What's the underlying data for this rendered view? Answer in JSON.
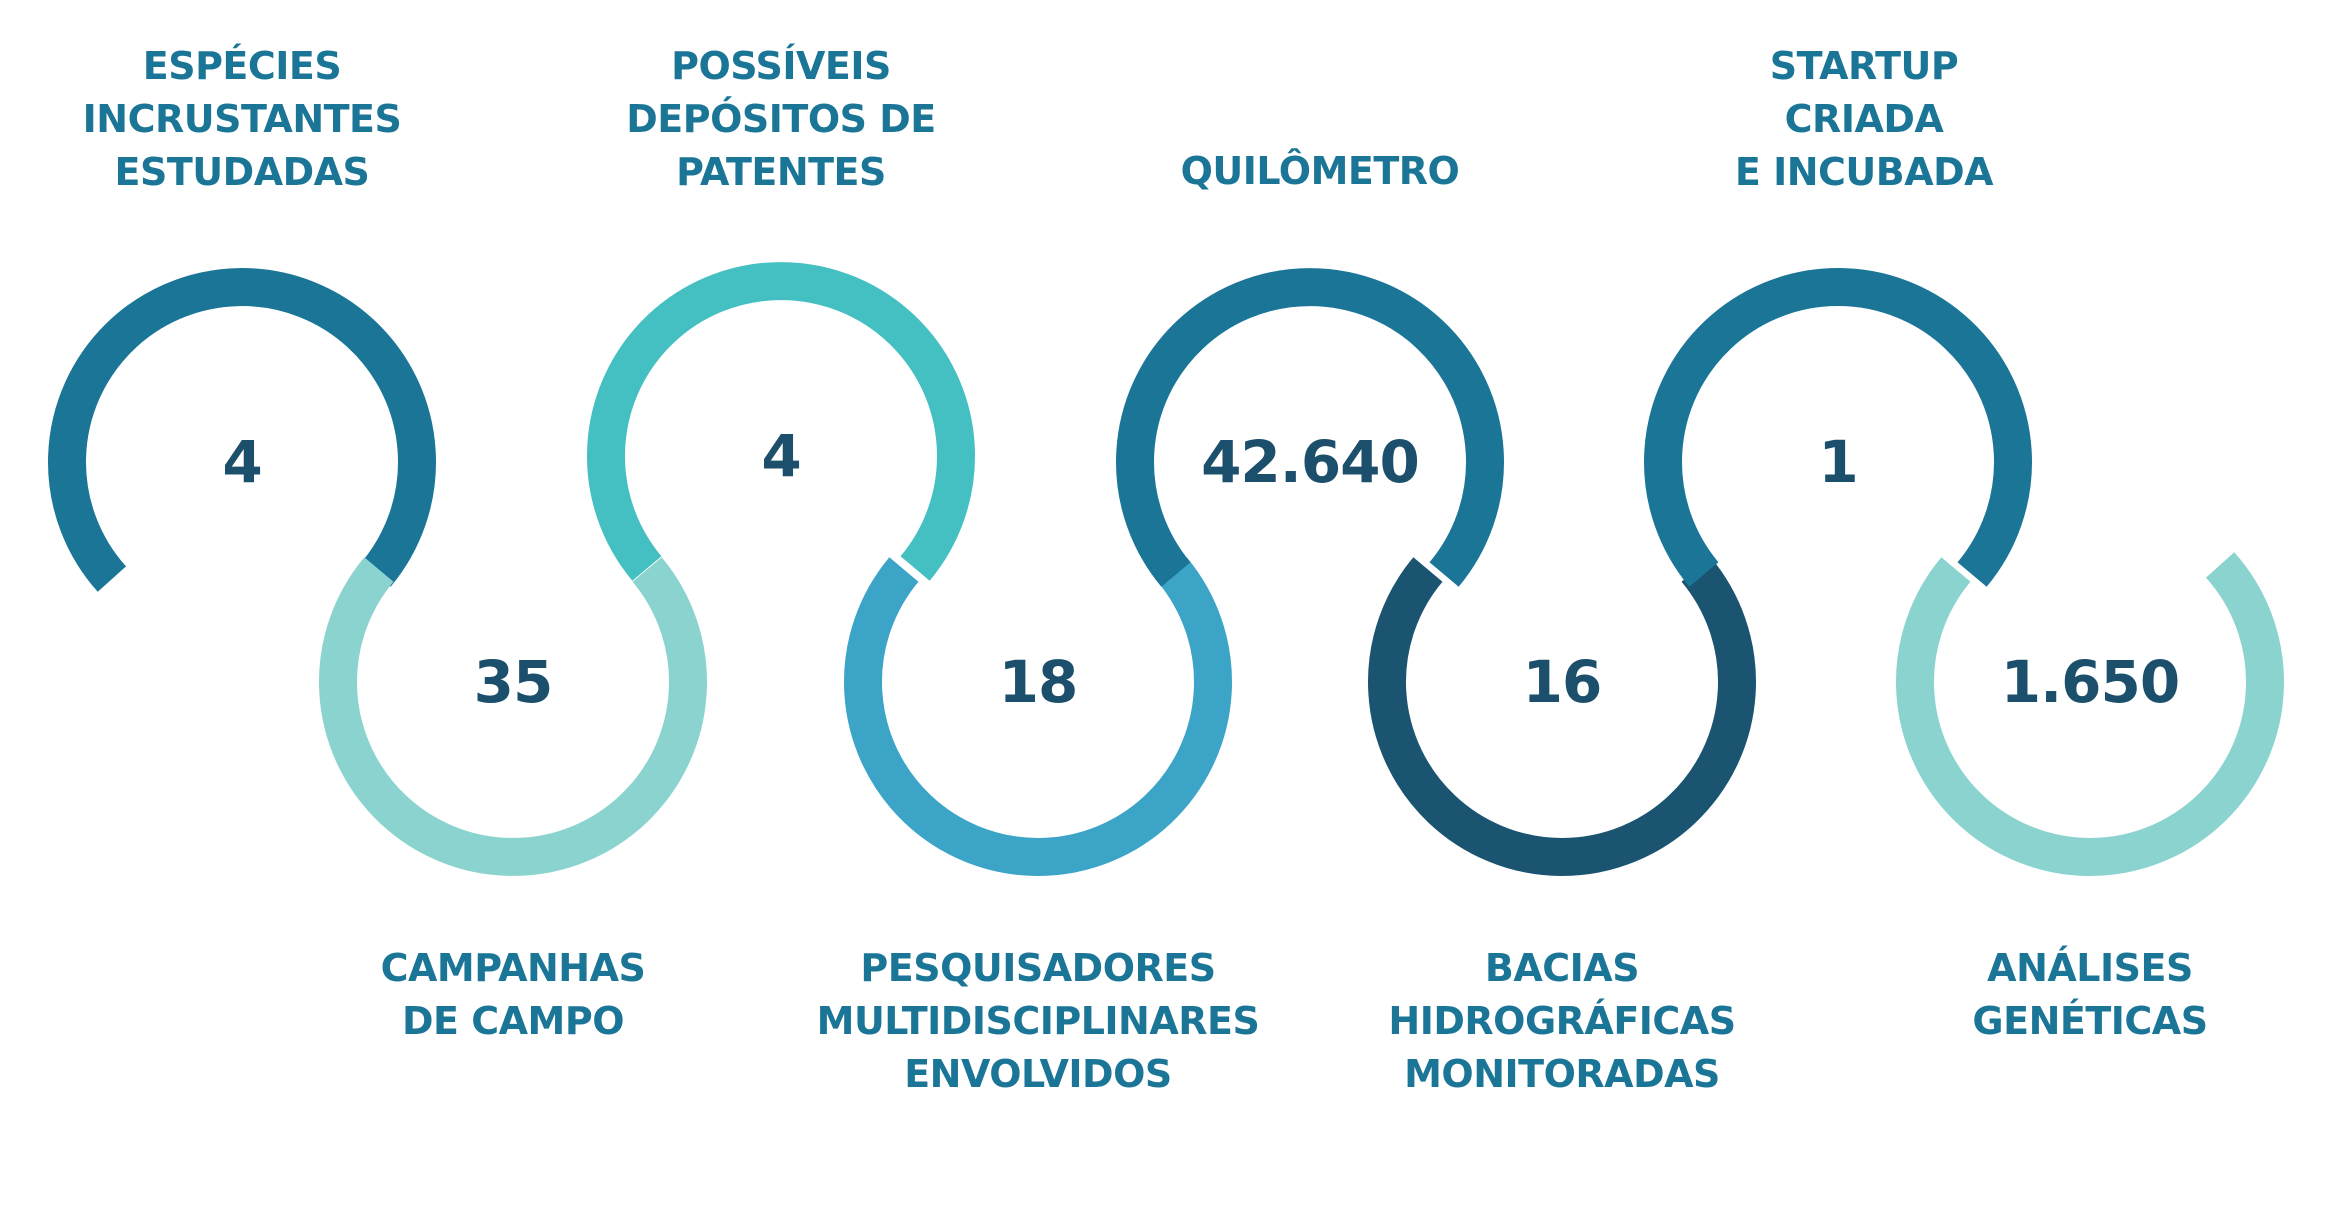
{
  "metrics": [
    {
      "value": "4",
      "label": "ESPÉCIES\nINCRUSTANTES\nESTUDADAS",
      "color": "#1b7597"
    },
    {
      "value": "35",
      "label": "CAMPANHAS\nDE CAMPO",
      "color": "#8ad3cf"
    },
    {
      "value": "4",
      "label": "POSSÍVEIS\nDEPÓSITOS DE\nPATENTES",
      "color": "#45c0c2"
    },
    {
      "value": "18",
      "label": "PESQUISADORES\nMULTIDISCIPLINARES\nENVOLVIDOS",
      "color": "#3ba4c7"
    },
    {
      "value": "42.640",
      "label": "QUILÔMETRO",
      "color": "#1b7597"
    },
    {
      "value": "16",
      "label": "BACIAS\nHIDROGRÁFICAS\nMONITORADAS",
      "color": "#1b5471"
    },
    {
      "value": "1",
      "label": "STARTUP\nCRIADA\nE INCUBADA",
      "color": "#1b7597"
    },
    {
      "value": "1.650",
      "label": "ANÁLISES\nGENÉTICAS",
      "color": "#8ad3cf"
    }
  ],
  "colors": {
    "label_text": "#1b7597",
    "value_text": "#1b4f6b"
  }
}
